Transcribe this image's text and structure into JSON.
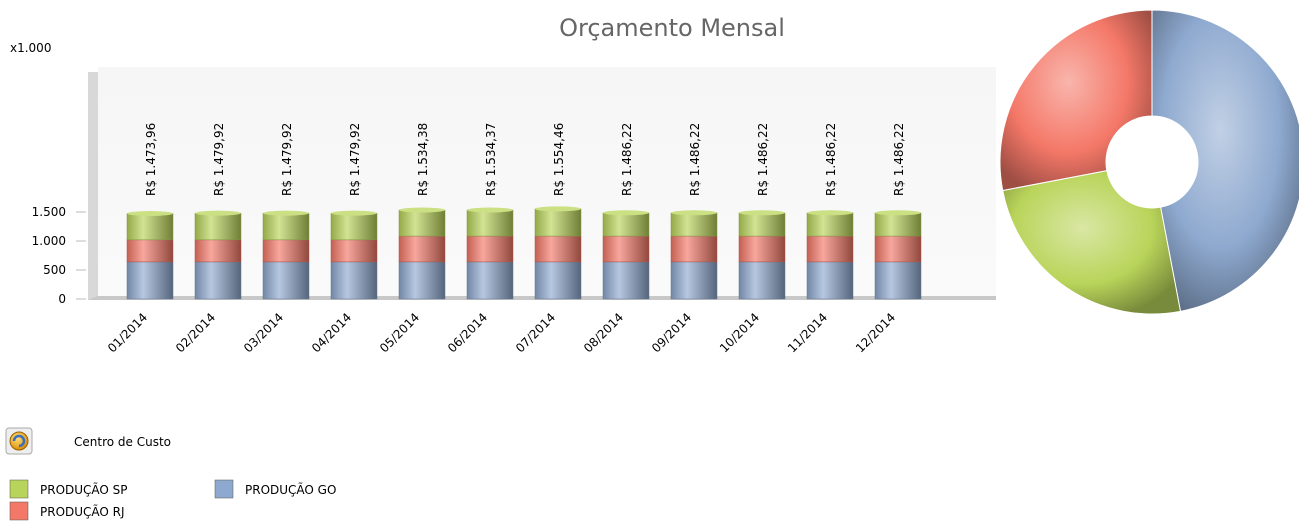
{
  "chart_data": [
    {
      "type": "bar",
      "title": "Orçamento Mensal",
      "y_unit_label": "x1.000",
      "categories": [
        "01/2014",
        "02/2014",
        "03/2014",
        "04/2014",
        "05/2014",
        "06/2014",
        "07/2014",
        "08/2014",
        "09/2014",
        "10/2014",
        "11/2014",
        "12/2014"
      ],
      "series": [
        {
          "name": "PRODUÇÃO GO",
          "color": "#8ea9cf",
          "values": [
            640,
            640,
            640,
            640,
            640,
            640,
            640,
            640,
            640,
            640,
            640,
            640
          ]
        },
        {
          "name": "PRODUÇÃO RJ",
          "color": "#f47868",
          "values": [
            380,
            380,
            380,
            380,
            445,
            445,
            445,
            445,
            445,
            445,
            445,
            445
          ]
        },
        {
          "name": "PRODUÇÃO SP",
          "color": "#b9d45a",
          "values": [
            454,
            460,
            460,
            460,
            449,
            449,
            469,
            401,
            401,
            401,
            401,
            401
          ]
        }
      ],
      "totals": [
        1473.96,
        1479.92,
        1479.92,
        1479.92,
        1534.38,
        1534.37,
        1554.46,
        1486.22,
        1486.22,
        1486.22,
        1486.22,
        1486.22
      ],
      "total_labels": [
        "R$ 1.473,96",
        "R$ 1.479,92",
        "R$ 1.479,92",
        "R$ 1.479,92",
        "R$ 1.534,38",
        "R$ 1.534,37",
        "R$ 1.554,46",
        "R$ 1.486,22",
        "R$ 1.486,22",
        "R$ 1.486,22",
        "R$ 1.486,22",
        "R$ 1.486,22"
      ],
      "ylim": [
        0,
        4000
      ],
      "yticks": [
        0,
        500,
        {
          "value": 1000,
          "label": "1.000"
        },
        {
          "value": 1500,
          "label": "1.500"
        }
      ],
      "legend_title": "Centro de Custo"
    },
    {
      "type": "pie",
      "categories": [
        "PRODUÇÃO GO",
        "PRODUÇÃO SP",
        "PRODUÇÃO RJ"
      ],
      "colors": [
        "#8ea9cf",
        "#b9d45a",
        "#f47868"
      ],
      "values": [
        47,
        25,
        28
      ]
    }
  ]
}
